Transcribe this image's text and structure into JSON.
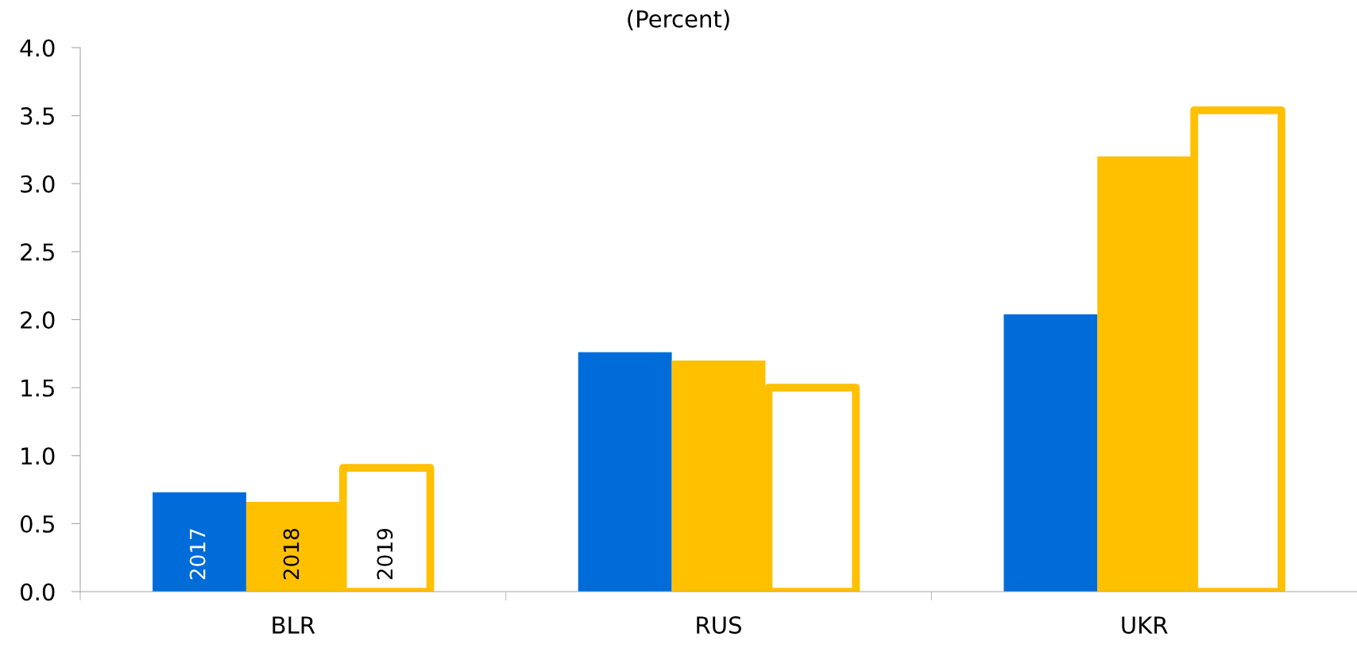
{
  "chart_data": {
    "type": "bar",
    "title": "(Percent)",
    "categories": [
      "BLR",
      "RUS",
      "UKR"
    ],
    "series": [
      {
        "name": "2017",
        "color": "#006cd9",
        "values": [
          0.73,
          1.76,
          2.04
        ]
      },
      {
        "name": "2018",
        "color": "#ffc000",
        "values": [
          0.66,
          1.7,
          3.2
        ]
      },
      {
        "name": "2019",
        "color": "#ffc000",
        "values": [
          0.91,
          1.5,
          3.54
        ]
      }
    ],
    "ylim": [
      0,
      4.0
    ],
    "yticks": [
      {
        "value": 0,
        "label": "0.0"
      },
      {
        "value": 0.5,
        "label": "0.5"
      },
      {
        "value": 1.0,
        "label": "1.0"
      },
      {
        "value": 1.5,
        "label": "1.5"
      },
      {
        "value": 2.0,
        "label": "2.0"
      },
      {
        "value": 2.5,
        "label": "2.5"
      },
      {
        "value": 3.0,
        "label": "3.0"
      },
      {
        "value": 3.5,
        "label": "3.5"
      },
      {
        "value": 4.0,
        "label": "4.0"
      }
    ],
    "grid": false,
    "legend": false
  }
}
